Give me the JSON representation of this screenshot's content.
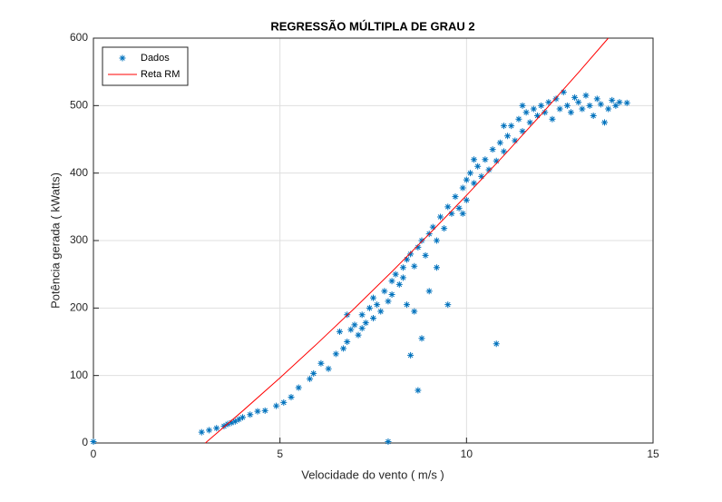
{
  "chart_data": {
    "type": "scatter",
    "title": "REGRESSÃO MÚLTIPLA DE GRAU 2",
    "xlabel": "Velocidade do vento ( m/s )",
    "ylabel": "Potência gerada ( kWatts)",
    "xlim": [
      0,
      15
    ],
    "xticks": [
      0,
      5,
      10,
      15
    ],
    "ylim": [
      0,
      600
    ],
    "yticks": [
      0,
      100,
      200,
      300,
      400,
      500,
      600
    ],
    "grid": true,
    "legend": "upper-left",
    "series": [
      {
        "name": "Dados",
        "color": "#0072bd",
        "mode": "markers",
        "x": [
          0,
          2.9,
          3.1,
          3.3,
          3.5,
          3.6,
          3.7,
          3.8,
          3.9,
          4.0,
          4.2,
          4.4,
          4.6,
          4.9,
          5.1,
          5.3,
          5.5,
          5.8,
          5.9,
          6.1,
          6.3,
          6.5,
          6.6,
          6.7,
          6.8,
          6.9,
          7.0,
          7.1,
          7.2,
          7.3,
          7.4,
          7.5,
          7.5,
          7.6,
          7.7,
          7.8,
          7.9,
          8.0,
          8.0,
          8.1,
          8.2,
          8.3,
          8.3,
          8.4,
          8.4,
          8.5,
          8.5,
          8.6,
          8.6,
          8.7,
          8.7,
          8.8,
          8.8,
          8.9,
          9.0,
          9.0,
          9.1,
          9.2,
          9.3,
          9.4,
          9.5,
          9.5,
          9.6,
          9.7,
          9.8,
          9.9,
          10.0,
          10.0,
          10.1,
          10.2,
          10.3,
          10.4,
          10.5,
          10.6,
          10.7,
          10.8,
          10.8,
          10.9,
          11.0,
          11.1,
          11.2,
          11.3,
          11.4,
          11.5,
          11.6,
          11.7,
          11.8,
          11.9,
          12.0,
          12.1,
          12.2,
          12.3,
          12.4,
          12.5,
          12.6,
          12.7,
          12.8,
          12.9,
          13.0,
          13.1,
          13.2,
          13.3,
          13.4,
          13.5,
          13.6,
          13.7,
          13.8,
          13.9,
          14.0,
          14.1,
          14.3,
          7.9,
          6.8,
          7.2,
          9.2,
          9.9,
          10.2,
          11.0,
          11.5
        ],
        "values": [
          2,
          16,
          19,
          22,
          25,
          28,
          30,
          32,
          35,
          38,
          42,
          47,
          48,
          55,
          60,
          68,
          82,
          95,
          103,
          118,
          110,
          132,
          165,
          140,
          150,
          168,
          175,
          160,
          190,
          178,
          200,
          185,
          215,
          205,
          195,
          225,
          210,
          240,
          220,
          250,
          235,
          260,
          245,
          272,
          205,
          280,
          130,
          262,
          195,
          290,
          78,
          300,
          155,
          278,
          310,
          225,
          320,
          300,
          335,
          318,
          350,
          205,
          340,
          365,
          348,
          378,
          390,
          360,
          400,
          385,
          410,
          395,
          420,
          405,
          435,
          418,
          147,
          445,
          432,
          455,
          470,
          448,
          480,
          462,
          490,
          475,
          495,
          485,
          500,
          490,
          505,
          480,
          510,
          495,
          520,
          500,
          490,
          512,
          505,
          495,
          515,
          500,
          485,
          510,
          502,
          475,
          495,
          508,
          500,
          505,
          504,
          2,
          190,
          170,
          260,
          340,
          420,
          470,
          500
        ]
      },
      {
        "name": "Reta RM",
        "color": "#ff0000",
        "mode": "lines",
        "x": [
          3,
          4,
          5,
          6,
          7,
          8,
          9,
          10,
          11,
          12,
          13,
          13.8
        ],
        "values": [
          0,
          47.5,
          96.6,
          147.4,
          199.8,
          253.9,
          309.7,
          367,
          426,
          486.7,
          549,
          600
        ]
      }
    ]
  }
}
